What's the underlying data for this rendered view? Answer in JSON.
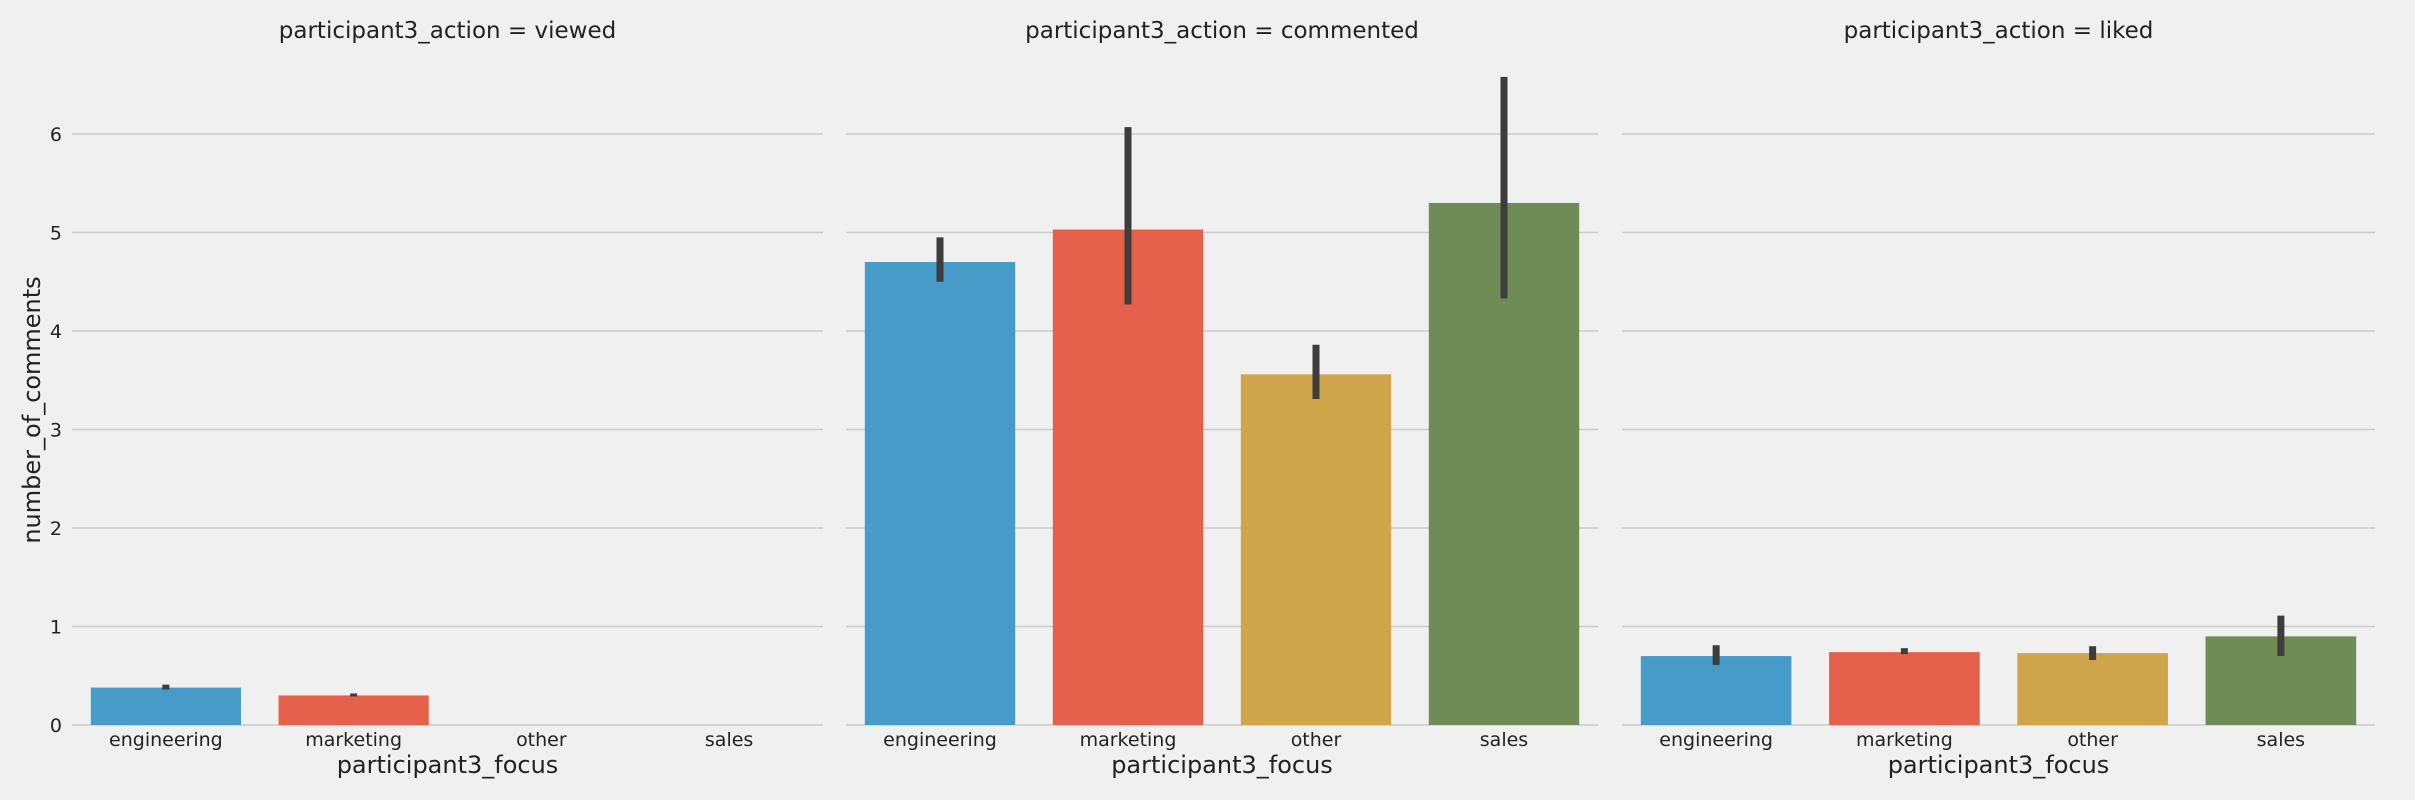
{
  "chart_data": {
    "type": "bar",
    "ylabel": "number_of_comments",
    "ylim": [
      0,
      6.8
    ],
    "yticks": [
      "0",
      "1",
      "2",
      "3",
      "4",
      "5",
      "6"
    ],
    "grid": true,
    "categories": [
      "engineering",
      "marketing",
      "other",
      "sales"
    ],
    "colors": [
      "#469bc9",
      "#e5604a",
      "#cfa54b",
      "#6f8b56"
    ],
    "facets": [
      {
        "title": "participant3_action = viewed",
        "xlabel": "participant3_focus",
        "values": [
          0.38,
          0.3,
          0,
          0
        ],
        "err_low": [
          0.36,
          0.29,
          0,
          0
        ],
        "err_high": [
          0.41,
          0.32,
          0,
          0
        ]
      },
      {
        "title": "participant3_action = commented",
        "xlabel": "participant3_focus",
        "values": [
          4.7,
          5.03,
          3.56,
          5.3
        ],
        "err_low": [
          4.5,
          4.27,
          3.31,
          4.33
        ],
        "err_high": [
          4.95,
          6.07,
          3.86,
          6.58
        ]
      },
      {
        "title": "participant3_action = liked",
        "xlabel": "participant3_focus",
        "values": [
          0.7,
          0.74,
          0.73,
          0.9
        ],
        "err_low": [
          0.61,
          0.72,
          0.66,
          0.7
        ],
        "err_high": [
          0.81,
          0.78,
          0.8,
          1.11
        ]
      }
    ]
  }
}
